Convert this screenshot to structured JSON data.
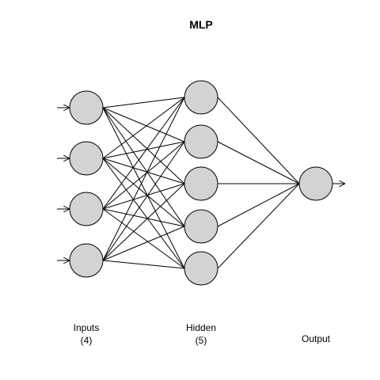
{
  "title": "MLP",
  "layers": [
    {
      "label": "Inputs",
      "count_label": "(4)",
      "units": 4
    },
    {
      "label": "Hidden",
      "count_label": "(5)",
      "units": 5
    },
    {
      "label": "Output",
      "count_label": "",
      "units": 1
    }
  ],
  "colors": {
    "node_fill": "#d3d3d3",
    "stroke": "#000000",
    "background": "#ffffff"
  }
}
